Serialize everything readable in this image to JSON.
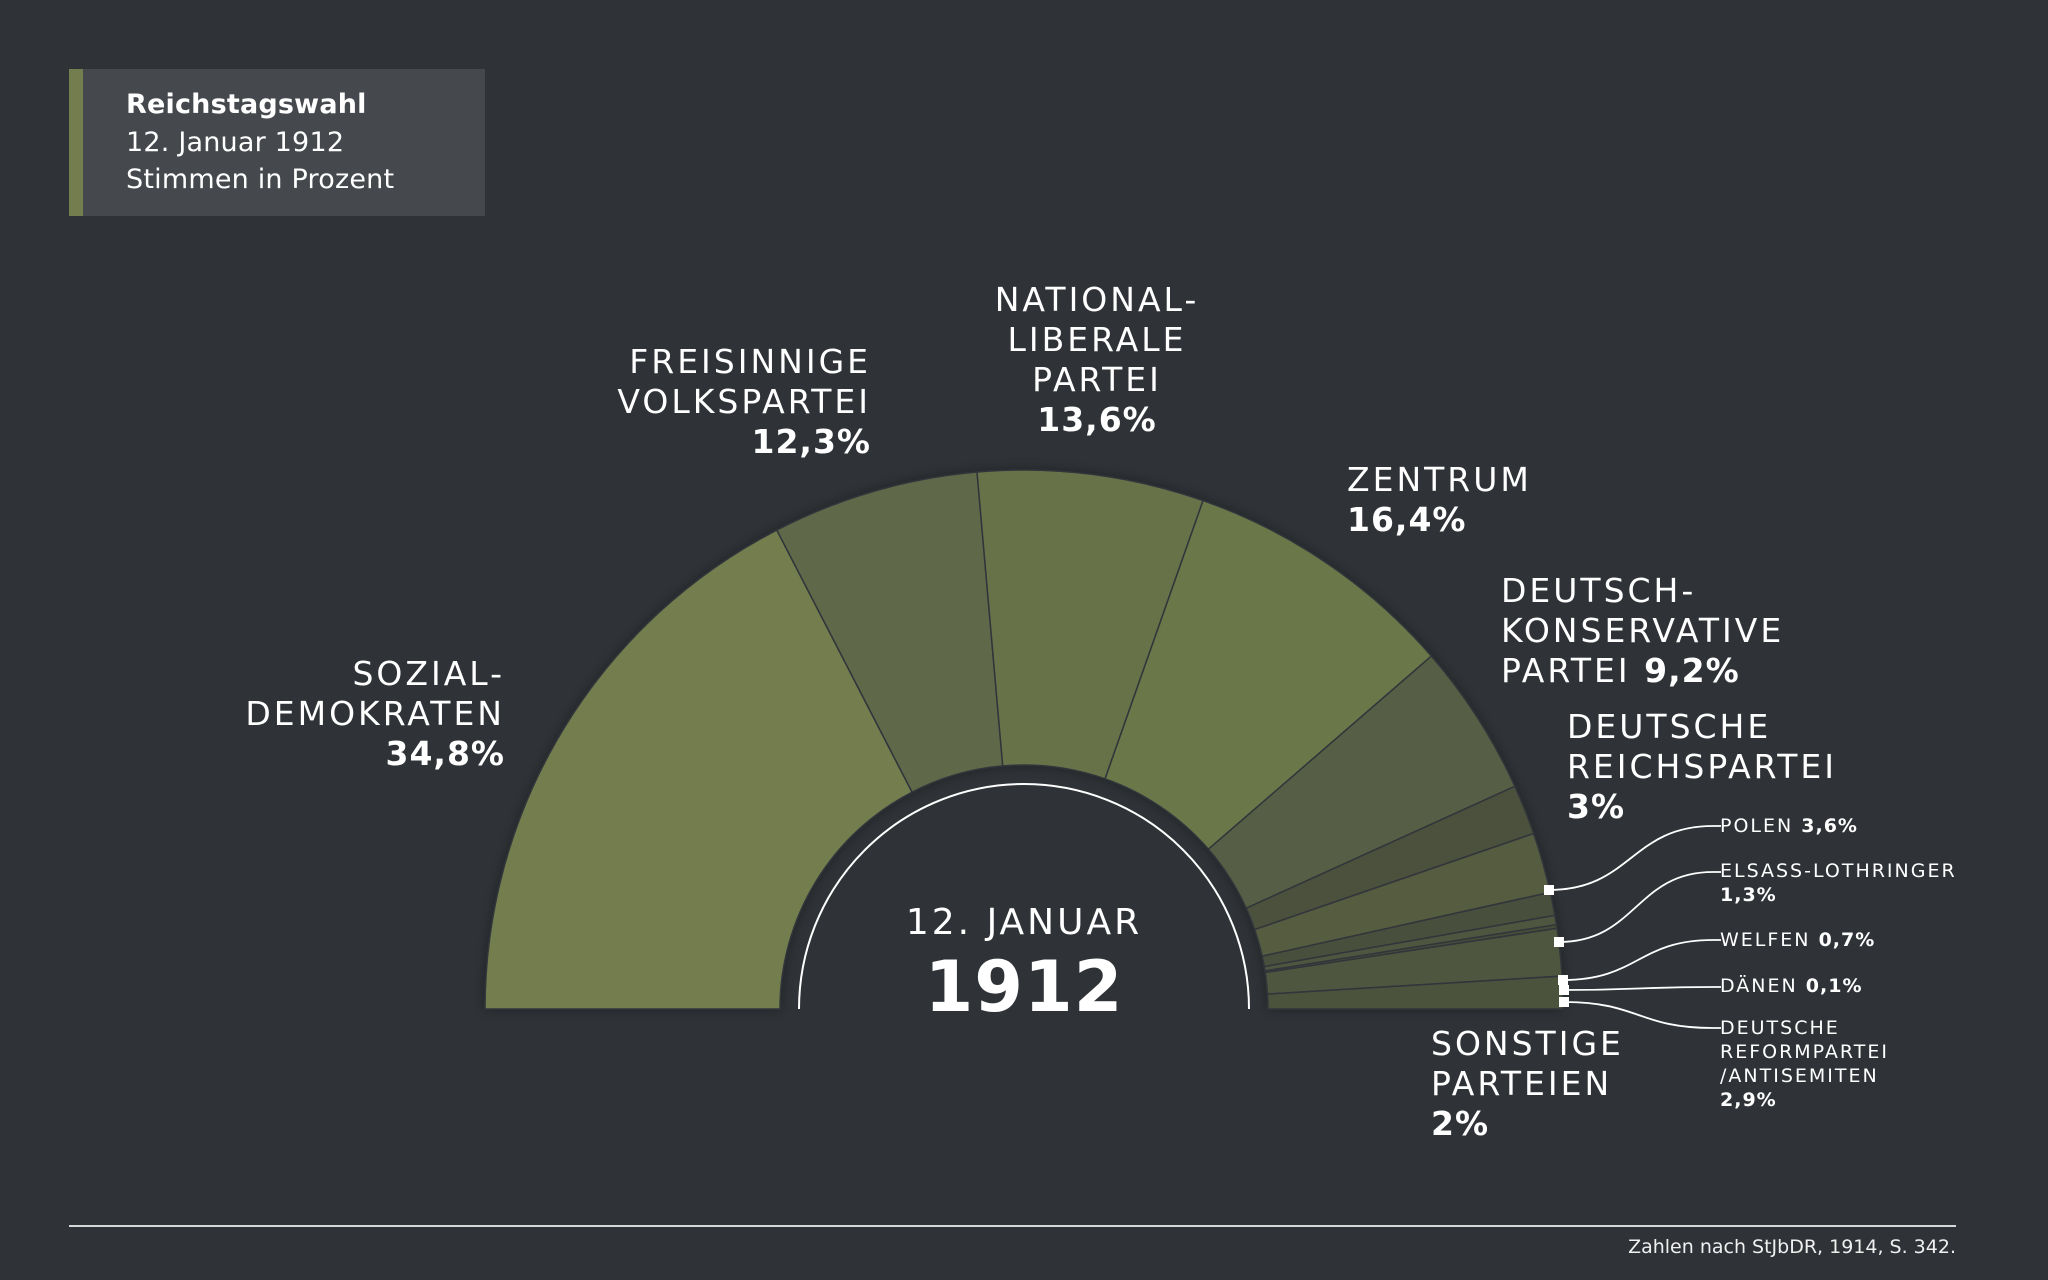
{
  "title": {
    "line1": "Reichstagswahl",
    "line2": "12. Januar 1912",
    "line3": "Stimmen in Prozent"
  },
  "center": {
    "date": "12. JANUAR",
    "year": "1912"
  },
  "labels": {
    "sozialdemokraten": {
      "lines": [
        "SOZIAL-",
        "DEMOKRATEN"
      ],
      "pct": "34,8%"
    },
    "freisinnige": {
      "lines": [
        "FREISINNIGE",
        "VOLKSPARTEI"
      ],
      "pct": "12,3%"
    },
    "nationalliberale": {
      "lines": [
        "NATIONAL-",
        "LIBERALE",
        "PARTEI"
      ],
      "pct": "13,6%"
    },
    "zentrum": {
      "lines": [
        "ZENTRUM"
      ],
      "pct": "16,4%"
    },
    "deutschkonservative": {
      "lines": [
        "DEUTSCH-",
        "KONSERVATIVE",
        "PARTEI"
      ],
      "pct": "9,2%"
    },
    "reichspartei": {
      "lines": [
        "DEUTSCHE",
        "REICHSPARTEI"
      ],
      "pct": "3%"
    },
    "polen": {
      "name": "POLEN",
      "pct": "3,6%"
    },
    "elsass": {
      "name": "ELSASS-LOTHRINGER",
      "pct": "1,3%"
    },
    "welfen": {
      "name": "WELFEN",
      "pct": "0,7%"
    },
    "daenen": {
      "name": "DÄNEN",
      "pct": "0,1%"
    },
    "reformpartei": {
      "lines": [
        "DEUTSCHE",
        "REFORMPARTEI",
        "/ANTISEMITEN"
      ],
      "pct": "2,9%"
    },
    "sonstige": {
      "lines": [
        "SONSTIGE",
        "PARTEIEN"
      ],
      "pct": "2%"
    }
  },
  "footer": {
    "source": "Zahlen nach StJbDR, 1914, S. 342."
  },
  "colors": {
    "background": "#2f3337",
    "title_box": "#45494d",
    "accent": "#737d4e"
  },
  "chart_data": {
    "type": "pie",
    "variant": "half-donut",
    "title": "Reichstagswahl 12. Januar 1912",
    "subtitle": "Stimmen in Prozent",
    "center_label": "12. JANUAR 1912",
    "categories": [
      "Sozialdemokraten",
      "Freisinnige Volkspartei",
      "Nationalliberale Partei",
      "Zentrum",
      "Deutschkonservative Partei",
      "Deutsche Reichspartei",
      "Polen",
      "Elsass-Lothringer",
      "Welfen",
      "Dänen",
      "Deutsche Reformpartei/Antisemiten",
      "Sonstige Parteien"
    ],
    "values": [
      34.8,
      12.3,
      13.6,
      16.4,
      9.2,
      3.0,
      3.6,
      1.3,
      0.7,
      0.1,
      2.9,
      2.0
    ],
    "unit": "%",
    "colors": [
      "#737d4e",
      "#5e6848",
      "#68724a",
      "#6b774a",
      "#575f44",
      "#4b513d",
      "#545b41",
      "#4a503c",
      "#50573f",
      "#474d39",
      "#50573f",
      "#4c523d"
    ],
    "source": "Zahlen nach StJbDR, 1914, S. 342.",
    "legend": "none (direct labels)"
  }
}
